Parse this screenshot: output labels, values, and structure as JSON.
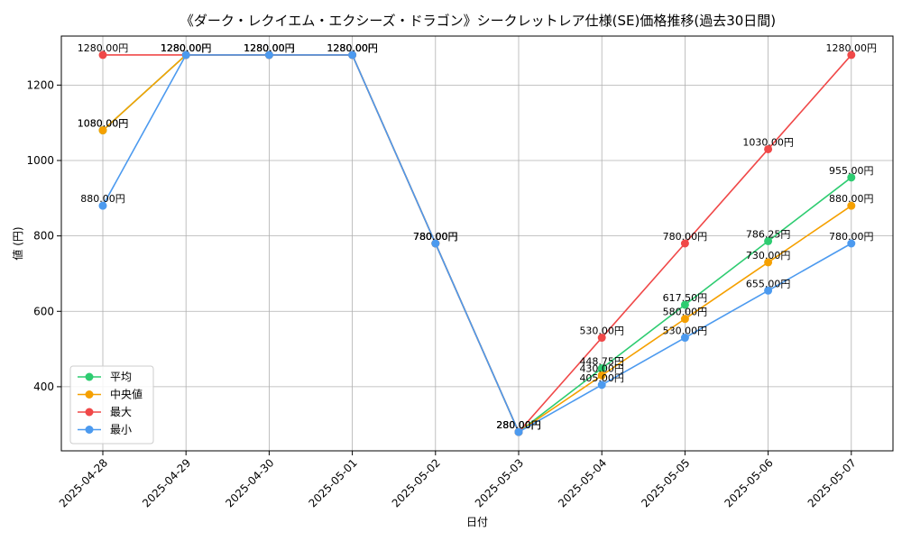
{
  "chart_data": {
    "type": "line",
    "title": "《ダーク・レクイエム・エクシーズ・ドラゴン》シークレットレア仕様(SE)価格推移(過去30日間)",
    "xlabel": "日付",
    "ylabel": "値 (円)",
    "ylim": [
      230,
      1330
    ],
    "yticks": [
      400,
      600,
      800,
      1000,
      1200
    ],
    "grid": true,
    "legend_position": "lower-left",
    "categories": [
      "2025-04-28",
      "2025-04-29",
      "2025-04-30",
      "2025-05-01",
      "2025-05-02",
      "2025-05-03",
      "2025-05-04",
      "2025-05-05",
      "2025-05-06",
      "2025-05-07"
    ],
    "series": [
      {
        "name": "平均",
        "color": "#2ecc71",
        "values": [
          1080,
          1280,
          1280,
          1280,
          780,
          280,
          448.75,
          617.5,
          786.25,
          955
        ],
        "labels": [
          "1080.00円",
          "1280.00円",
          "1280.00円",
          "1280.00円",
          "780.00円",
          "280.00円",
          "448.75円",
          "617.50円",
          "786.25円",
          "955.00円"
        ]
      },
      {
        "name": "中央値",
        "color": "#f5a000",
        "values": [
          1080,
          1280,
          1280,
          1280,
          780,
          280,
          430,
          580,
          730,
          880
        ],
        "labels": [
          "1080.00円",
          "1280.00円",
          "1280.00円",
          "1280.00円",
          "780.00円",
          "280.00円",
          "430.00円",
          "580.00円",
          "730.00円",
          "880.00円"
        ]
      },
      {
        "name": "最大",
        "color": "#f04848",
        "values": [
          1280,
          1280,
          1280,
          1280,
          780,
          280,
          530,
          780,
          1030,
          1280
        ],
        "labels": [
          "1280.00円",
          "1280.00円",
          "1280.00円",
          "1280.00円",
          "780.00円",
          "280.00円",
          "530.00円",
          "780.00円",
          "1030.00円",
          "1280.00円"
        ]
      },
      {
        "name": "最小",
        "color": "#4c9aef",
        "values": [
          880,
          1280,
          1280,
          1280,
          780,
          280,
          405,
          530,
          655,
          780
        ],
        "labels": [
          "880.00円",
          "1280.00円",
          "1280.00円",
          "1280.00円",
          "780.00円",
          "280.00円",
          "405.00円",
          "530.00円",
          "655.00円",
          "780.00円"
        ]
      }
    ]
  }
}
